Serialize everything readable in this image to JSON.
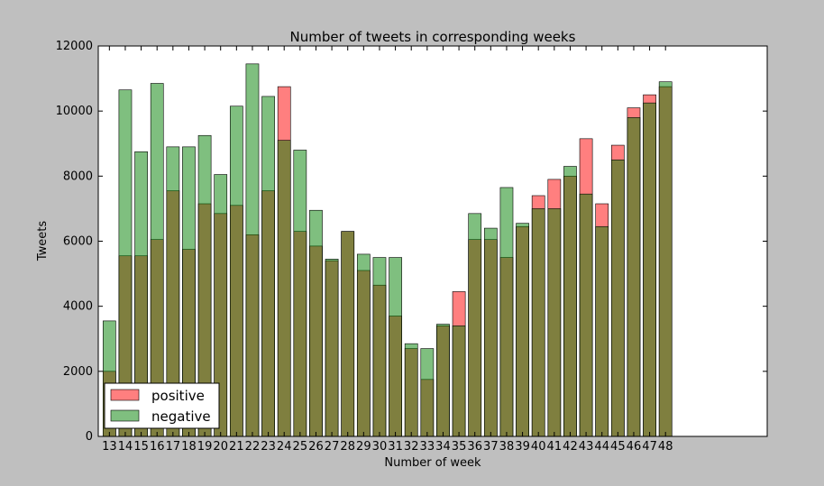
{
  "chart_data": {
    "type": "bar",
    "title": "Number of tweets in corresponding weeks",
    "xlabel": "Number of week",
    "ylabel": "Tweets",
    "ylim": [
      0,
      12000
    ],
    "yticks": [
      0,
      2000,
      4000,
      6000,
      8000,
      10000,
      12000
    ],
    "xlim": [
      12.3,
      54.4
    ],
    "grid": false,
    "legend_position": "bottom-left",
    "categories": [
      "13",
      "14",
      "15",
      "16",
      "17",
      "18",
      "19",
      "20",
      "21",
      "22",
      "23",
      "24",
      "25",
      "26",
      "27",
      "28",
      "29",
      "30",
      "31",
      "32",
      "33",
      "34",
      "35",
      "36",
      "37",
      "38",
      "39",
      "40",
      "41",
      "42",
      "43",
      "44",
      "45",
      "46",
      "47",
      "48"
    ],
    "series": [
      {
        "name": "positive",
        "color": "#ff0000",
        "alpha": 0.5,
        "values": [
          2000,
          5550,
          5550,
          6050,
          7550,
          5750,
          7150,
          6850,
          7100,
          6200,
          7550,
          10750,
          6300,
          5850,
          5400,
          6300,
          5100,
          4650,
          3700,
          2700,
          1750,
          3400,
          4450,
          6050,
          6050,
          5500,
          6450,
          7400,
          7900,
          8000,
          9150,
          7150,
          8950,
          10100,
          10500,
          10750
        ]
      },
      {
        "name": "negative",
        "color": "#008000",
        "alpha": 0.5,
        "values": [
          3550,
          10650,
          8750,
          10850,
          8900,
          8900,
          9250,
          8050,
          10150,
          11450,
          10450,
          9100,
          8800,
          6950,
          5450,
          6300,
          5600,
          5500,
          5500,
          2850,
          2700,
          3450,
          3400,
          6850,
          6400,
          7650,
          6550,
          7000,
          7000,
          8300,
          7450,
          6450,
          8500,
          9800,
          10250,
          10900
        ]
      }
    ]
  }
}
